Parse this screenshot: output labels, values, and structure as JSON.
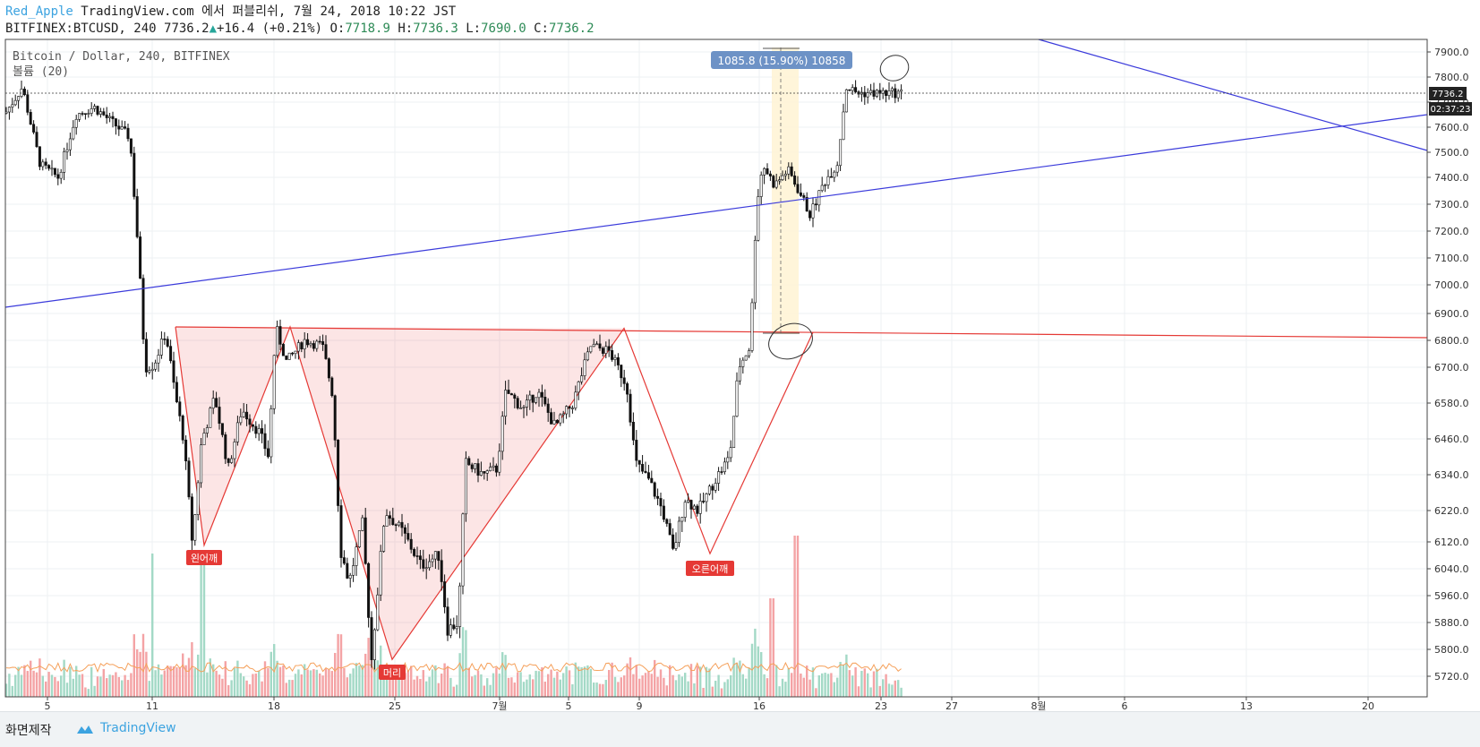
{
  "header": {
    "author": "Red_Apple",
    "published": "TradingView.com 에서 퍼블리쉬, 7월 24, 2018 10:22 JST",
    "symbol": "BITFINEX:BTCUSD, 240",
    "last": "7736.2",
    "change": "+16.4 (+0.21%)",
    "o_label": "O:",
    "o_val": "7718.9",
    "h_label": "H:",
    "h_val": "7736.3",
    "l_label": "L:",
    "l_val": "7690.0",
    "c_label": "C:",
    "c_val": "7736.2"
  },
  "legend": {
    "series_title": "Bitcoin / Dollar, 240, BITFINEX",
    "volume_title": "볼륨 (20)"
  },
  "price_axis": {
    "ticks": [
      "7900.0",
      "7800.0",
      "7700.0",
      "7600.0",
      "7500.0",
      "7400.0",
      "7300.0",
      "7200.0",
      "7100.0",
      "7000.0",
      "6900.0",
      "6800.0",
      "6700.0",
      "6580.0",
      "6460.0",
      "6340.0",
      "6220.0",
      "6120.0",
      "6040.0",
      "5960.0",
      "5880.0",
      "5800.0",
      "5720.0"
    ],
    "current_price": "7736.2",
    "countdown": "02:37:23"
  },
  "time_axis": {
    "ticks": [
      "5",
      "11",
      "18",
      "25",
      "7월",
      "5",
      "9",
      "16",
      "23",
      "27",
      "8월",
      "6",
      "13",
      "20"
    ]
  },
  "annotations": {
    "left_shoulder": "왼어깨",
    "head": "머리",
    "right_shoulder": "오른어깨",
    "measure": "1085.8 (15.90%) 10858"
  },
  "colors": {
    "up": "#26a69a",
    "down": "#ef5350",
    "pattern": "#e53935",
    "trend": "#3b3bdb",
    "vol_up": "#a3d9c6",
    "vol_down": "#f4a3a5",
    "vol_ma": "#f5a05a",
    "label_bg": "#e53935",
    "measure_bg": "#6d92c6"
  },
  "footer": {
    "made_with": "화면제작",
    "brand": "TradingView"
  },
  "chart_data": {
    "type": "candlestick",
    "title": "Bitcoin / Dollar, 240, BITFINEX",
    "x_axis_ticks": [
      "5",
      "11",
      "18",
      "25",
      "7월",
      "5",
      "9",
      "16",
      "23",
      "27",
      "8월",
      "6",
      "13",
      "20"
    ],
    "y_axis_ticks": [
      7900,
      7800,
      7700,
      7600,
      7500,
      7400,
      7300,
      7200,
      7100,
      7000,
      6900,
      6800,
      6700,
      6580,
      6460,
      6340,
      6220,
      6120,
      6040,
      5960,
      5880,
      5800,
      5720
    ],
    "last_close": 7736.2,
    "ohlc_last": {
      "open": 7718.9,
      "high": 7736.3,
      "low": 7690.0,
      "close": 7736.2
    },
    "pattern": "inverse head and shoulders",
    "pattern_points": [
      {
        "label": "왼어깨",
        "price": 6110
      },
      {
        "label": "머리",
        "price": 5770
      },
      {
        "label": "오른어깨",
        "price": 6085
      }
    ],
    "neckline": [
      6850,
      6825
    ],
    "measured_move": {
      "text": "1085.8 (15.90%) 10858"
    },
    "price_path": [
      {
        "x": 5,
        "y": 7650
      },
      {
        "x": 25,
        "y": 7760
      },
      {
        "x": 45,
        "y": 7450
      },
      {
        "x": 65,
        "y": 7400
      },
      {
        "x": 85,
        "y": 7650
      },
      {
        "x": 105,
        "y": 7680
      },
      {
        "x": 125,
        "y": 7620
      },
      {
        "x": 145,
        "y": 7560
      },
      {
        "x": 155,
        "y": 7100
      },
      {
        "x": 162,
        "y": 6700
      },
      {
        "x": 172,
        "y": 6710
      },
      {
        "x": 185,
        "y": 6830
      },
      {
        "x": 195,
        "y": 6620
      },
      {
        "x": 205,
        "y": 6460
      },
      {
        "x": 215,
        "y": 6110
      },
      {
        "x": 225,
        "y": 6450
      },
      {
        "x": 240,
        "y": 6600
      },
      {
        "x": 255,
        "y": 6360
      },
      {
        "x": 270,
        "y": 6560
      },
      {
        "x": 290,
        "y": 6480
      },
      {
        "x": 300,
        "y": 6400
      },
      {
        "x": 308,
        "y": 6850
      },
      {
        "x": 320,
        "y": 6720
      },
      {
        "x": 340,
        "y": 6800
      },
      {
        "x": 360,
        "y": 6780
      },
      {
        "x": 372,
        "y": 6600
      },
      {
        "x": 380,
        "y": 6100
      },
      {
        "x": 390,
        "y": 6000
      },
      {
        "x": 405,
        "y": 6180
      },
      {
        "x": 415,
        "y": 5770
      },
      {
        "x": 430,
        "y": 6220
      },
      {
        "x": 450,
        "y": 6150
      },
      {
        "x": 470,
        "y": 6050
      },
      {
        "x": 490,
        "y": 6080
      },
      {
        "x": 500,
        "y": 5860
      },
      {
        "x": 512,
        "y": 5880
      },
      {
        "x": 520,
        "y": 6380
      },
      {
        "x": 540,
        "y": 6340
      },
      {
        "x": 555,
        "y": 6360
      },
      {
        "x": 565,
        "y": 6620
      },
      {
        "x": 585,
        "y": 6560
      },
      {
        "x": 600,
        "y": 6620
      },
      {
        "x": 620,
        "y": 6500
      },
      {
        "x": 640,
        "y": 6580
      },
      {
        "x": 660,
        "y": 6780
      },
      {
        "x": 680,
        "y": 6760
      },
      {
        "x": 700,
        "y": 6640
      },
      {
        "x": 710,
        "y": 6380
      },
      {
        "x": 725,
        "y": 6320
      },
      {
        "x": 740,
        "y": 6220
      },
      {
        "x": 752,
        "y": 6085
      },
      {
        "x": 765,
        "y": 6260
      },
      {
        "x": 780,
        "y": 6220
      },
      {
        "x": 800,
        "y": 6330
      },
      {
        "x": 815,
        "y": 6400
      },
      {
        "x": 825,
        "y": 6700
      },
      {
        "x": 838,
        "y": 6780
      },
      {
        "x": 845,
        "y": 7300
      },
      {
        "x": 852,
        "y": 7450
      },
      {
        "x": 865,
        "y": 7370
      },
      {
        "x": 880,
        "y": 7430
      },
      {
        "x": 895,
        "y": 7330
      },
      {
        "x": 905,
        "y": 7260
      },
      {
        "x": 920,
        "y": 7380
      },
      {
        "x": 935,
        "y": 7450
      },
      {
        "x": 945,
        "y": 7760
      },
      {
        "x": 958,
        "y": 7736
      }
    ]
  }
}
